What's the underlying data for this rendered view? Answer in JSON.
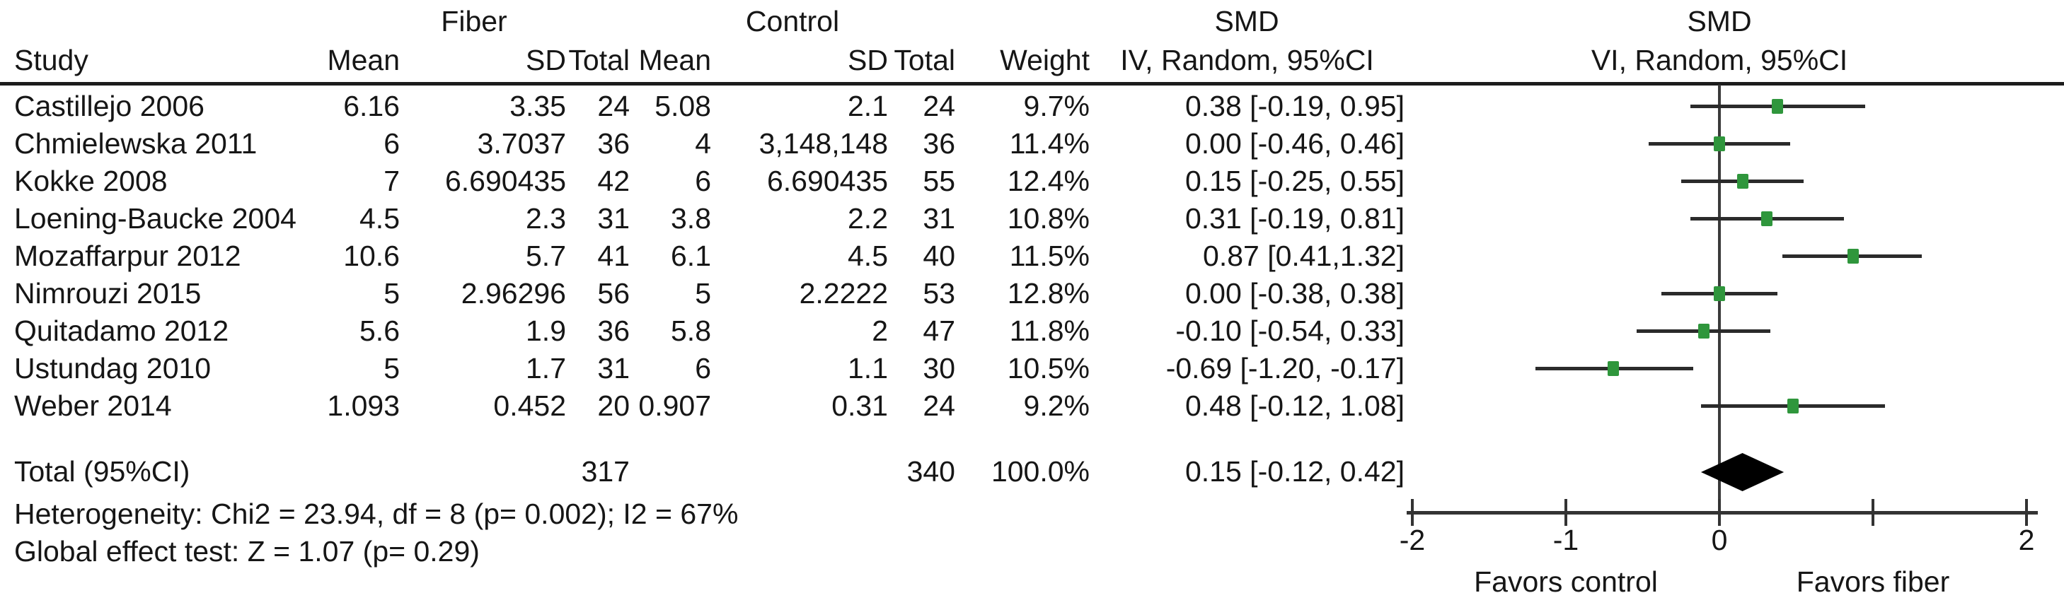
{
  "figure": {
    "group_headers": {
      "fiber": "Fiber",
      "control": "Control",
      "smd_left": "SMD",
      "smd_right": "SMD"
    },
    "column_headers": {
      "study": "Study",
      "mean": "Mean",
      "sd": "SD",
      "total": "Total",
      "mean2": "Mean",
      "sd2": "SD",
      "total2": "Total",
      "weight": "Weight",
      "iv": "IV, Random, 95%CI",
      "vi": "VI, Random, 95%CI"
    }
  },
  "footer": {
    "heterogeneity": "Heterogeneity: Chi2 = 23.94, df = 8 (p= 0.002); I2 = 67%",
    "global_effect": "Global effect test: Z = 1.07 (p= 0.29)"
  },
  "chart_data": {
    "type": "forest",
    "effect_measure": "SMD",
    "model": "Random",
    "marker_color": "#2f963c",
    "line_color": "#2b2b2b",
    "diamond_color": "#000000",
    "studies": [
      {
        "study": "Castillejo 2006",
        "fiber_mean": "6.16",
        "fiber_sd": "3.35",
        "fiber_total": "24",
        "control_mean": "5.08",
        "control_sd": "2.1",
        "control_total": "24",
        "weight": "9.7%",
        "ci_text": "0.38 [-0.19, 0.95]",
        "smd": 0.38,
        "ci_low": -0.19,
        "ci_high": 0.95
      },
      {
        "study": "Chmielewska 2011",
        "fiber_mean": "6",
        "fiber_sd": "3.7037",
        "fiber_total": "36",
        "control_mean": "4",
        "control_sd": "3,148,148",
        "control_total": "36",
        "weight": "11.4%",
        "ci_text": "0.00 [-0.46, 0.46]",
        "smd": 0.0,
        "ci_low": -0.46,
        "ci_high": 0.46
      },
      {
        "study": "Kokke 2008",
        "fiber_mean": "7",
        "fiber_sd": "6.690435",
        "fiber_total": "42",
        "control_mean": "6",
        "control_sd": "6.690435",
        "control_total": "55",
        "weight": "12.4%",
        "ci_text": "0.15 [-0.25, 0.55]",
        "smd": 0.15,
        "ci_low": -0.25,
        "ci_high": 0.55
      },
      {
        "study": "Loening-Baucke 2004",
        "fiber_mean": "4.5",
        "fiber_sd": "2.3",
        "fiber_total": "31",
        "control_mean": "3.8",
        "control_sd": "2.2",
        "control_total": "31",
        "weight": "10.8%",
        "ci_text": "0.31 [-0.19, 0.81]",
        "smd": 0.31,
        "ci_low": -0.19,
        "ci_high": 0.81
      },
      {
        "study": "Mozaffarpur 2012",
        "fiber_mean": "10.6",
        "fiber_sd": "5.7",
        "fiber_total": "41",
        "control_mean": "6.1",
        "control_sd": "4.5",
        "control_total": "40",
        "weight": "11.5%",
        "ci_text": "0.87 [0.41,1.32]",
        "smd": 0.87,
        "ci_low": 0.41,
        "ci_high": 1.32
      },
      {
        "study": "Nimrouzi 2015",
        "fiber_mean": "5",
        "fiber_sd": "2.96296",
        "fiber_total": "56",
        "control_mean": "5",
        "control_sd": "2.2222",
        "control_total": "53",
        "weight": "12.8%",
        "ci_text": "0.00 [-0.38, 0.38]",
        "smd": 0.0,
        "ci_low": -0.38,
        "ci_high": 0.38
      },
      {
        "study": "Quitadamo 2012",
        "fiber_mean": "5.6",
        "fiber_sd": "1.9",
        "fiber_total": "36",
        "control_mean": "5.8",
        "control_sd": "2",
        "control_total": "47",
        "weight": "11.8%",
        "ci_text": "-0.10 [-0.54, 0.33]",
        "smd": -0.1,
        "ci_low": -0.54,
        "ci_high": 0.33
      },
      {
        "study": "Ustundag 2010",
        "fiber_mean": "5",
        "fiber_sd": "1.7",
        "fiber_total": "31",
        "control_mean": "6",
        "control_sd": "1.1",
        "control_total": "30",
        "weight": "10.5%",
        "ci_text": "-0.69 [-1.20, -0.17]",
        "smd": -0.69,
        "ci_low": -1.2,
        "ci_high": -0.17
      },
      {
        "study": "Weber 2014",
        "fiber_mean": "1.093",
        "fiber_sd": "0.452",
        "fiber_total": "20",
        "control_mean": "0.907",
        "control_sd": "0.31",
        "control_total": "24",
        "weight": "9.2%",
        "ci_text": "0.48 [-0.12, 1.08]",
        "smd": 0.48,
        "ci_low": -0.12,
        "ci_high": 1.08
      }
    ],
    "total_row": {
      "label": "Total (95%CI)",
      "fiber_total": "317",
      "control_total": "340",
      "weight": "100.0%",
      "ci_text": "0.15 [-0.12, 0.42]",
      "smd": 0.15,
      "ci_low": -0.12,
      "ci_high": 0.42
    },
    "axis": {
      "min": -2,
      "max": 2,
      "ticks": [
        -2,
        -1,
        0,
        1,
        2
      ],
      "tick_labels": [
        "-2",
        "-1",
        "0",
        "",
        "2"
      ],
      "favors_left": "Favors control",
      "favors_right": "Favors fiber"
    }
  }
}
